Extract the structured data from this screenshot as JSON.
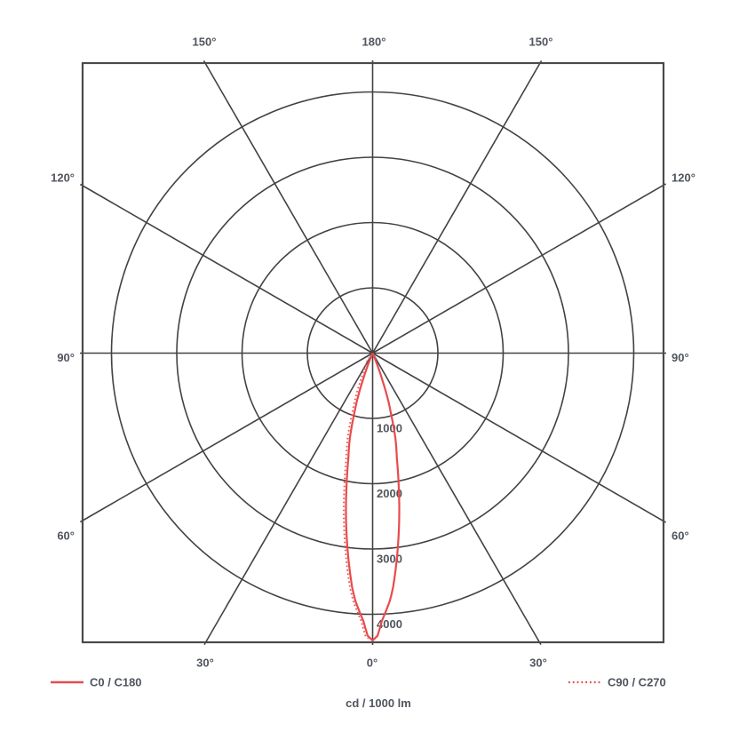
{
  "legend": {
    "c0": {
      "label": "C0 / C180",
      "style": "solid"
    },
    "c90": {
      "label": "C90 / C270",
      "style": "dotted"
    }
  },
  "axis": {
    "unit_label": "cd / 1000 lm",
    "ring_labels": [
      "1000",
      "2000",
      "3000",
      "4000"
    ],
    "angle_labels": {
      "top": [
        "150°",
        "180°",
        "150°"
      ],
      "left": [
        "120°",
        "90°",
        "60°"
      ],
      "right": [
        "120°",
        "90°",
        "60°"
      ],
      "bottom": [
        "30°",
        "0°",
        "30°"
      ]
    }
  },
  "colors": {
    "curve_red": "#e84b4b",
    "grid": "#424242",
    "border": "#4a4a4a",
    "text": "#50555e"
  },
  "chart_data": {
    "type": "line",
    "subtype": "polar-photometric-luminous-intensity",
    "units": "cd / 1000 lm",
    "radial_ticks": [
      1000,
      2000,
      3000,
      4000
    ],
    "radial_max": 4500,
    "angle_step_deg": 30,
    "angle_layout": "0° at nadir (bottom), 90° horizontal, 180° at zenith; scale mirrored left/right",
    "series": [
      {
        "name": "C0 / C180",
        "style": "solid",
        "color": "#e84b4b",
        "symmetric": true,
        "points_deg_cd_per_klm": [
          [
            0,
            4400
          ],
          [
            1,
            4330
          ],
          [
            2,
            4100
          ],
          [
            3,
            3950
          ],
          [
            4,
            3800
          ],
          [
            5,
            3600
          ],
          [
            6,
            3350
          ],
          [
            7,
            3100
          ],
          [
            8,
            2850
          ],
          [
            9,
            2600
          ],
          [
            10,
            2350
          ],
          [
            11,
            2100
          ],
          [
            12,
            1870
          ],
          [
            13,
            1650
          ],
          [
            14,
            1500
          ],
          [
            15,
            1350
          ],
          [
            16,
            1150
          ],
          [
            17,
            950
          ],
          [
            18,
            800
          ],
          [
            19,
            620
          ],
          [
            20,
            420
          ],
          [
            21,
            280
          ],
          [
            22,
            150
          ],
          [
            23,
            60
          ],
          [
            24,
            0
          ]
        ]
      },
      {
        "name": "C90 / C270",
        "style": "dotted",
        "color": "#e84b4b",
        "symmetric": true,
        "points_deg_cd_per_klm": [
          [
            0,
            4400
          ],
          [
            1,
            4330
          ],
          [
            2,
            4100
          ],
          [
            3,
            3950
          ],
          [
            4,
            3800
          ],
          [
            5,
            3600
          ],
          [
            6,
            3350
          ],
          [
            7,
            3100
          ],
          [
            8,
            2850
          ],
          [
            9,
            2600
          ],
          [
            10,
            2350
          ],
          [
            11,
            2100
          ],
          [
            12,
            1870
          ],
          [
            13,
            1650
          ],
          [
            14,
            1500
          ],
          [
            15,
            1350
          ],
          [
            16,
            1150
          ],
          [
            17,
            950
          ],
          [
            18,
            800
          ],
          [
            19,
            620
          ],
          [
            20,
            420
          ],
          [
            21,
            280
          ],
          [
            22,
            150
          ],
          [
            23,
            60
          ],
          [
            24,
            0
          ]
        ]
      }
    ]
  }
}
